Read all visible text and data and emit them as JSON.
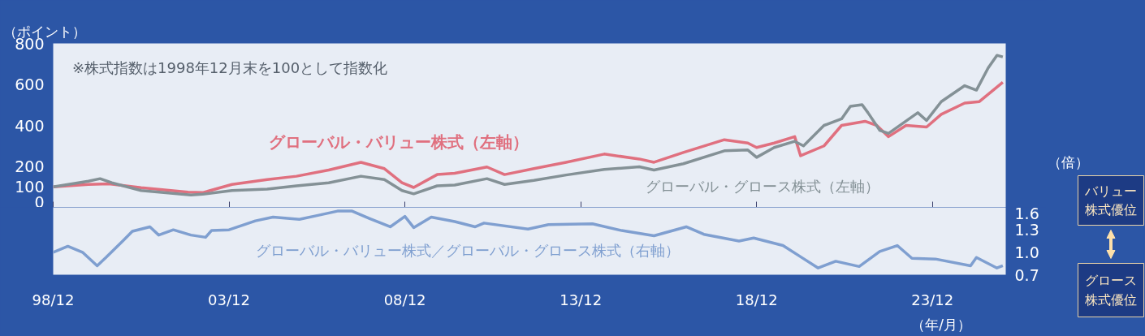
{
  "chart_data": [
    {
      "type": "line",
      "ylabel": "（ポイント）",
      "annotations": [
        "※株式指数は1998年12月末を100として指数化"
      ],
      "xlim": [
        "1998-12",
        "2026-01"
      ],
      "xticks": [
        {
          "value": "1998-12",
          "label": null
        },
        {
          "value": "2003-12",
          "label": null
        },
        {
          "value": "2008-12",
          "label": null
        },
        {
          "value": "2013-12",
          "label": null
        },
        {
          "value": "2018-12",
          "label": null
        },
        {
          "value": "2023-12",
          "label": null
        }
      ],
      "ylim": [
        0,
        800
      ],
      "yticks": [
        0,
        100,
        200,
        400,
        600,
        800
      ],
      "tick_labels": "y",
      "line_style": "solid",
      "series": [
        {
          "name": "グローバル・バリュー株式（左軸）",
          "color": "#e0707f",
          "x": [
            "1998-12",
            "1999-12",
            "2000-07",
            "2001-06",
            "2002-10",
            "2003-03",
            "2004-01",
            "2005-01",
            "2005-11",
            "2006-10",
            "2007-09",
            "2008-05",
            "2008-11",
            "2009-03",
            "2009-11",
            "2010-05",
            "2011-04",
            "2011-10",
            "2012-08",
            "2013-07",
            "2014-08",
            "2015-08",
            "2016-01",
            "2016-11",
            "2018-01",
            "2018-09",
            "2018-12",
            "2019-06",
            "2020-01",
            "2020-03",
            "2020-11",
            "2021-05",
            "2022-01",
            "2022-05",
            "2022-09",
            "2023-03",
            "2023-10",
            "2024-03",
            "2024-11",
            "2025-04",
            "2025-12"
          ],
          "values": [
            100,
            112,
            115,
            96,
            74,
            72,
            112,
            136,
            152,
            182,
            220,
            189,
            120,
            97,
            160,
            166,
            197,
            160,
            189,
            220,
            260,
            236,
            220,
            268,
            330,
            314,
            292,
            314,
            345,
            252,
            300,
            400,
            420,
            400,
            345,
            400,
            392,
            454,
            509,
            516,
            610
          ]
        },
        {
          "name": "グローバル・グロース株式（左軸）",
          "color": "#849196",
          "x": [
            "1998-12",
            "1999-12",
            "2000-04",
            "2000-08",
            "2001-06",
            "2002-11",
            "2003-03",
            "2004-01",
            "2005-01",
            "2005-11",
            "2006-10",
            "2007-09",
            "2008-05",
            "2008-11",
            "2009-03",
            "2009-11",
            "2010-05",
            "2011-04",
            "2011-10",
            "2012-08",
            "2013-07",
            "2014-08",
            "2015-08",
            "2016-01",
            "2016-11",
            "2018-01",
            "2018-09",
            "2018-12",
            "2019-06",
            "2020-01",
            "2020-04",
            "2020-11",
            "2021-05",
            "2021-08",
            "2021-12",
            "2022-02",
            "2022-06",
            "2022-09",
            "2023-07",
            "2023-10",
            "2024-03",
            "2024-11",
            "2025-03",
            "2025-07",
            "2025-10",
            "2025-12"
          ],
          "values": [
            100,
            128,
            140,
            120,
            82,
            60,
            64,
            82,
            89,
            105,
            120,
            152,
            136,
            82,
            66,
            105,
            109,
            140,
            112,
            132,
            158,
            185,
            198,
            182,
            213,
            276,
            280,
            244,
            292,
            322,
            300,
            400,
            432,
            493,
            501,
            462,
            376,
            361,
            462,
            424,
            516,
            594,
            572,
            680,
            742,
            734
          ]
        }
      ]
    },
    {
      "type": "line",
      "ylabel": "（倍）",
      "xlabel": "（年/月）",
      "annotations": [
        "バリュー株式優位",
        "グロース株式優位"
      ],
      "xlim": [
        "1998-12",
        "2026-01"
      ],
      "xticks": [
        {
          "value": "1998-12",
          "label": "98/12"
        },
        {
          "value": "2003-12",
          "label": "03/12"
        },
        {
          "value": "2008-12",
          "label": "08/12"
        },
        {
          "value": "2013-12",
          "label": "13/12"
        },
        {
          "value": "2018-12",
          "label": "18/12"
        },
        {
          "value": "2023-12",
          "label": "23/12"
        }
      ],
      "ylim": [
        0.7,
        1.6
      ],
      "yticks": [
        {
          "value": 0.7,
          "label": "0.7"
        },
        {
          "value": 1,
          "label": "1.0"
        },
        {
          "value": 1.3,
          "label": "1.3"
        },
        {
          "value": 1.6,
          "label": "1.6"
        }
      ],
      "line_style": "solid",
      "series": [
        {
          "name": "グローバル・バリュー株式／グローバル・グロース株式（右軸）",
          "color": "#7f9fd0",
          "x": [
            "1998-12",
            "1999-05",
            "1999-10",
            "2000-03",
            "2000-06",
            "2000-12",
            "2001-03",
            "2001-09",
            "2001-12",
            "2002-05",
            "2002-11",
            "2003-04",
            "2003-06",
            "2003-12",
            "2004-09",
            "2005-03",
            "2005-12",
            "2006-06",
            "2007-01",
            "2007-06",
            "2007-12",
            "2008-07",
            "2008-12",
            "2009-03",
            "2009-09",
            "2010-05",
            "2010-12",
            "2011-03",
            "2012-06",
            "2013-01",
            "2014-04",
            "2015-02",
            "2016-01",
            "2016-12",
            "2017-06",
            "2018-06",
            "2018-11",
            "2019-09",
            "2020-03",
            "2020-09",
            "2021-03",
            "2021-11",
            "2022-06",
            "2022-12",
            "2023-05",
            "2024-01",
            "2025-01",
            "2025-03",
            "2025-10",
            "2025-12"
          ],
          "values": [
            1.0,
            1.08,
            1.0,
            0.82,
            0.93,
            1.16,
            1.28,
            1.34,
            1.23,
            1.3,
            1.23,
            1.2,
            1.29,
            1.3,
            1.42,
            1.47,
            1.44,
            1.49,
            1.55,
            1.55,
            1.45,
            1.34,
            1.48,
            1.33,
            1.47,
            1.41,
            1.34,
            1.39,
            1.31,
            1.37,
            1.38,
            1.29,
            1.22,
            1.34,
            1.24,
            1.15,
            1.19,
            1.09,
            0.94,
            0.79,
            0.88,
            0.81,
            1.01,
            1.09,
            0.92,
            0.91,
            0.82,
            0.93,
            0.79,
            0.82
          ]
        }
      ]
    }
  ]
}
